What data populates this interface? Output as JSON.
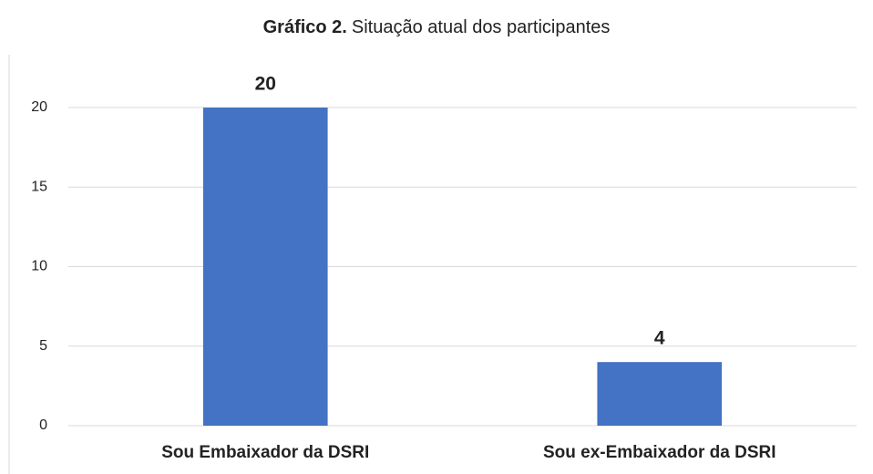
{
  "chart_data": {
    "type": "bar",
    "title_bold": "Gráfico 2.",
    "title": "Situação atual dos participantes",
    "categories": [
      "Sou Embaixador da DSRI",
      "Sou ex-Embaixador da DSRI"
    ],
    "values": [
      20,
      4
    ],
    "color": "#4472c4",
    "ylim": [
      0,
      20
    ],
    "yticks": [
      0,
      5,
      10,
      15,
      20
    ],
    "grid": true
  }
}
